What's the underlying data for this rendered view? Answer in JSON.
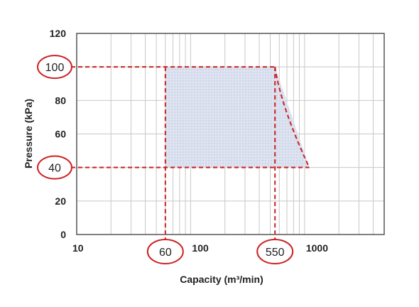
{
  "chart_data": {
    "type": "area",
    "xlabel": "Capacity (m³/min)",
    "ylabel": "Pressure (kPa)",
    "x_scale": "log",
    "xlim": [
      10,
      5000
    ],
    "ylim": [
      0,
      120
    ],
    "grid": true,
    "x_ticks": [
      {
        "value": 10,
        "label": "10"
      },
      {
        "value": 100,
        "label": "100"
      },
      {
        "value": 1000,
        "label": "1000"
      }
    ],
    "y_ticks": [
      {
        "value": 0,
        "label": "0"
      },
      {
        "value": 20,
        "label": "20"
      },
      {
        "value": 40,
        "label": "40"
      },
      {
        "value": 60,
        "label": "60"
      },
      {
        "value": 80,
        "label": "80"
      },
      {
        "value": 100,
        "label": "100"
      },
      {
        "value": 120,
        "label": "120"
      }
    ],
    "region": {
      "x": [
        60,
        60,
        550,
        1100
      ],
      "y": [
        40,
        100,
        100,
        40
      ]
    },
    "callouts": {
      "x": [
        {
          "value": 60,
          "label": "60"
        },
        {
          "value": 550,
          "label": "550"
        }
      ],
      "y": [
        {
          "value": 100,
          "label": "100"
        },
        {
          "value": 40,
          "label": "40"
        }
      ]
    },
    "colors": {
      "fill": "#dde3f0",
      "dash": "#cc2222",
      "grid": "#c8c8c8",
      "frame": "#555555"
    }
  }
}
